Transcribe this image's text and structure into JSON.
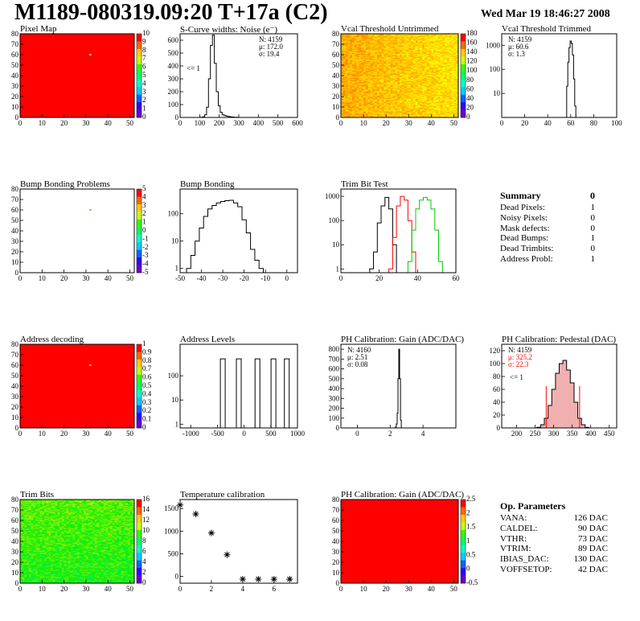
{
  "header": {
    "title": "M1189-080319.09:20 T+17a (C2)",
    "date": "Wed Mar 19 18:46:27 2008"
  },
  "colors": {
    "red": "#ff0000",
    "black": "#000000",
    "green": "#00cc00",
    "pink": "#e08080"
  },
  "chart_data": [
    {
      "id": "pixel-map",
      "type": "heatmap",
      "title": "Pixel Map",
      "xlim": [
        0,
        52
      ],
      "ylim": [
        0,
        80
      ],
      "xticks": [
        0,
        10,
        20,
        30,
        40,
        50
      ],
      "yticks": [
        0,
        10,
        20,
        30,
        40,
        50,
        60,
        70,
        80
      ],
      "zticks": [
        0,
        1,
        2,
        3,
        4,
        5,
        6,
        7,
        8,
        9,
        10
      ],
      "fill": "uniform-red",
      "highlight": [
        {
          "x": 32,
          "y": 60
        }
      ]
    },
    {
      "id": "scurve",
      "type": "histogram",
      "title": "S-Curve widths: Noise (e⁻)",
      "xlim": [
        0,
        600
      ],
      "ylim": [
        0,
        650
      ],
      "xticks": [
        0,
        100,
        200,
        300,
        400,
        500,
        600
      ],
      "yticks": [
        0,
        100,
        200,
        300,
        400,
        500,
        600
      ],
      "stats": [
        "N: 4159",
        "μ: 172.0",
        "σ: 19.4"
      ],
      "note": "<= 1",
      "x": [
        100,
        110,
        120,
        130,
        140,
        150,
        160,
        170,
        180,
        190,
        200,
        210,
        220,
        230,
        240,
        250,
        260,
        270,
        280,
        290,
        300
      ],
      "values": [
        0,
        2,
        5,
        20,
        80,
        300,
        560,
        640,
        420,
        200,
        90,
        40,
        20,
        15,
        10,
        8,
        5,
        3,
        2,
        1,
        0
      ]
    },
    {
      "id": "vcal-untrimmed",
      "type": "heatmap",
      "title": "Vcal Threshold Untrimmed",
      "xlim": [
        0,
        52
      ],
      "ylim": [
        0,
        80
      ],
      "xticks": [
        0,
        10,
        20,
        30,
        40,
        50
      ],
      "yticks": [
        0,
        10,
        20,
        30,
        40,
        50,
        60,
        70,
        80
      ],
      "zticks": [
        0,
        20,
        40,
        60,
        80,
        100,
        120,
        140,
        160,
        180
      ],
      "fill": "orange-yellow"
    },
    {
      "id": "vcal-trimmed",
      "type": "histogram",
      "title": "Vcal Threshold Trimmed",
      "xlim": [
        0,
        100
      ],
      "log": true,
      "ylim": [
        1,
        3000
      ],
      "xticks": [
        0,
        20,
        40,
        60,
        80,
        100
      ],
      "yticks": [
        10,
        100,
        1000
      ],
      "stats": [
        "N: 4159",
        "μ: 60.6",
        "σ:  1.3"
      ],
      "x": [
        55,
        56,
        57,
        58,
        59,
        60,
        61,
        62,
        63,
        64,
        65,
        66
      ],
      "values": [
        0,
        1,
        20,
        200,
        800,
        1500,
        1200,
        400,
        40,
        3,
        0,
        0
      ]
    },
    {
      "id": "bump-problems",
      "type": "heatmap",
      "title": "Bump Bonding Problems",
      "xlim": [
        0,
        52
      ],
      "ylim": [
        0,
        80
      ],
      "xticks": [
        0,
        10,
        20,
        30,
        40,
        50
      ],
      "yticks": [
        0,
        10,
        20,
        30,
        40,
        50,
        60,
        70,
        80
      ],
      "zticks": [
        -5,
        -4,
        -3,
        -2,
        -1,
        0,
        1,
        2,
        3,
        4,
        5
      ],
      "fill": "white",
      "highlight": [
        {
          "x": 32,
          "y": 60
        }
      ]
    },
    {
      "id": "bump-bonding",
      "type": "histogram",
      "title": "Bump Bonding",
      "xlim": [
        -50,
        5
      ],
      "log": true,
      "ylim": [
        0.7,
        800
      ],
      "xticks": [
        -50,
        -40,
        -30,
        -20,
        -10,
        0
      ],
      "yticks": [
        1,
        10,
        100
      ],
      "x": [
        -46,
        -44,
        -42,
        -40,
        -38,
        -36,
        -34,
        -32,
        -30,
        -28,
        -26,
        -24,
        -22,
        -20,
        -18,
        -16,
        -14,
        -12,
        -10
      ],
      "values": [
        1,
        3,
        10,
        30,
        80,
        150,
        200,
        250,
        280,
        300,
        310,
        250,
        180,
        60,
        20,
        5,
        2,
        1,
        0
      ]
    },
    {
      "id": "trim-bit-test",
      "type": "histogram",
      "title": "Trim Bit Test",
      "xlim": [
        0,
        60
      ],
      "log": true,
      "ylim": [
        0.7,
        2000
      ],
      "xticks": [
        0,
        20,
        40,
        60
      ],
      "yticks": [
        1,
        10,
        100,
        1000
      ],
      "series": [
        {
          "color": "#000000",
          "x": [
            16,
            18,
            20,
            22,
            24,
            26,
            28
          ],
          "values": [
            1,
            5,
            80,
            400,
            900,
            300,
            10
          ]
        },
        {
          "color": "#ff0000",
          "x": [
            26,
            28,
            30,
            32,
            34,
            36,
            38
          ],
          "values": [
            1,
            20,
            400,
            1000,
            700,
            100,
            5
          ]
        },
        {
          "color": "#00cc00",
          "x": [
            36,
            38,
            40,
            42,
            44,
            46,
            48,
            50,
            52
          ],
          "values": [
            2,
            40,
            300,
            700,
            900,
            700,
            300,
            40,
            2
          ]
        }
      ]
    },
    {
      "id": "address-decoding",
      "type": "heatmap",
      "title": "Address decoding",
      "xlim": [
        0,
        52
      ],
      "ylim": [
        0,
        80
      ],
      "xticks": [
        0,
        10,
        20,
        30,
        40,
        50
      ],
      "yticks": [
        0,
        10,
        20,
        30,
        40,
        50,
        60,
        70,
        80
      ],
      "zticks": [
        0,
        0.1,
        0.2,
        0.3,
        0.4,
        0.5,
        0.6,
        0.7,
        0.8,
        0.9,
        1
      ],
      "fill": "uniform-red",
      "highlight": [
        {
          "x": 32,
          "y": 60
        }
      ]
    },
    {
      "id": "address-levels",
      "type": "histogram",
      "title": "Address Levels",
      "xlim": [
        -1200,
        1000
      ],
      "log": true,
      "ylim": [
        0.7,
        2000
      ],
      "xticks": [
        -1000,
        -500,
        0,
        500,
        1000
      ],
      "yticks": [
        1,
        10,
        100
      ],
      "x": [
        -400,
        -100,
        250,
        550,
        800
      ],
      "values": [
        500,
        500,
        500,
        500,
        500
      ]
    },
    {
      "id": "ph-gain",
      "type": "histogram",
      "title": "PH Calibration: Gain (ADC/DAC)",
      "xlim": [
        -1,
        6
      ],
      "ylim": [
        0,
        850
      ],
      "xticks": [
        0,
        2,
        4
      ],
      "yticks": [
        0,
        100,
        200,
        300,
        400,
        500,
        600,
        700,
        800
      ],
      "stats": [
        "N: 4160",
        "μ: 2.51",
        "σ: 0.08"
      ],
      "x": [
        2.3,
        2.35,
        2.4,
        2.45,
        2.5,
        2.55,
        2.6,
        2.65,
        2.7
      ],
      "values": [
        0,
        10,
        40,
        150,
        500,
        800,
        500,
        80,
        0
      ]
    },
    {
      "id": "ph-pedestal",
      "type": "histogram",
      "title": "PH Calibration: Pedestal (DAC)",
      "xlim": [
        160,
        470
      ],
      "ylim": [
        0,
        130
      ],
      "xticks": [
        200,
        250,
        300,
        350,
        400,
        450
      ],
      "yticks": [
        0,
        20,
        40,
        60,
        80,
        100,
        120
      ],
      "stats": [
        "N: 4159",
        "μ: 325.2",
        "σ: 22.3"
      ],
      "note": "<= 1",
      "x": [
        260,
        270,
        280,
        290,
        300,
        310,
        320,
        330,
        340,
        350,
        360,
        370,
        380,
        390
      ],
      "values": [
        1,
        5,
        15,
        35,
        60,
        85,
        100,
        105,
        90,
        70,
        40,
        15,
        5,
        1
      ]
    },
    {
      "id": "trim-bits",
      "type": "heatmap",
      "title": "Trim Bits",
      "xlim": [
        0,
        52
      ],
      "ylim": [
        0,
        80
      ],
      "xticks": [
        0,
        10,
        20,
        30,
        40,
        50
      ],
      "yticks": [
        0,
        10,
        20,
        30,
        40,
        50,
        60,
        70,
        80
      ],
      "zticks": [
        0,
        2,
        4,
        6,
        8,
        10,
        12,
        14,
        16
      ],
      "fill": "green-yellow"
    },
    {
      "id": "temperature-calibration",
      "type": "scatter",
      "title": "Temperature calibration",
      "xlim": [
        0,
        7.5
      ],
      "ylim": [
        -150,
        1700
      ],
      "xticks": [
        0,
        2,
        4,
        6
      ],
      "yticks": [
        0,
        500,
        1000,
        1500
      ],
      "x": [
        0,
        1,
        2,
        3,
        4,
        5,
        6,
        7
      ],
      "values": [
        1580,
        1380,
        960,
        480,
        -60,
        -60,
        -60,
        -60
      ]
    },
    {
      "id": "ph-gain-map",
      "type": "heatmap",
      "title": "PH Calibration: Gain (ADC/DAC)",
      "xlim": [
        0,
        52
      ],
      "ylim": [
        0,
        80
      ],
      "xticks": [
        0,
        10,
        20,
        30,
        40,
        50
      ],
      "yticks": [
        0,
        10,
        20,
        30,
        40,
        50,
        60,
        70,
        80
      ],
      "zticks": [
        -0.5,
        0,
        0.5,
        1,
        1.5,
        2,
        2.5
      ],
      "fill": "uniform-red"
    }
  ],
  "summary": {
    "title": "Summary",
    "total": "0",
    "rows": [
      {
        "label": "Dead Pixels:",
        "value": "1"
      },
      {
        "label": "Noisy Pixels:",
        "value": "0"
      },
      {
        "label": "Mask defects:",
        "value": "0"
      },
      {
        "label": "Dead Bumps:",
        "value": "1"
      },
      {
        "label": "Dead Trimbits:",
        "value": "0"
      },
      {
        "label": "Address Probl:",
        "value": "1"
      }
    ]
  },
  "op_params": {
    "title": "Op. Parameters",
    "rows": [
      {
        "label": "VANA:",
        "value": "126 DAC"
      },
      {
        "label": "CALDEL:",
        "value": "90 DAC"
      },
      {
        "label": "VTHR:",
        "value": "73 DAC"
      },
      {
        "label": "VTRIM:",
        "value": "89 DAC"
      },
      {
        "label": "IBIAS_DAC:",
        "value": "130 DAC"
      },
      {
        "label": "VOFFSETOP:",
        "value": "42 DAC"
      }
    ]
  }
}
